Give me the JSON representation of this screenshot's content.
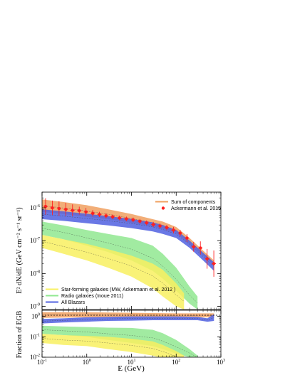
{
  "chart_data": {
    "type": "area",
    "xlabel": "E (GeV)",
    "xscale": "log",
    "xlim": [
      0.1,
      1000
    ],
    "x_ticks": [
      "10^-1",
      "10^0",
      "10^1",
      "10^2",
      "10^3"
    ],
    "panels": [
      {
        "ylabel": "E² dN/dE (GeV cm⁻² s⁻¹ sr⁻¹)",
        "yscale": "log",
        "ylim": [
          8e-10,
          3e-06
        ],
        "y_ticks": [
          "10^-6",
          "10^-7",
          "10^-8",
          "10^-9"
        ],
        "series": [
          {
            "name": "Sum of components",
            "kind": "band",
            "color": "#f0a060",
            "x": [
              0.1,
              0.3,
              1,
              3,
              10,
              30,
              50,
              100,
              200,
              400,
              700
            ],
            "lo": [
              7.5e-07,
              6.5e-07,
              5.3e-07,
              4.5e-07,
              3.5e-07,
              2.7e-07,
              2.3e-07,
              1.7e-07,
              8e-08,
              3.5e-08,
              1.8e-08
            ],
            "hi": [
              1.8e-06,
              1.5e-06,
              1.2e-06,
              9e-07,
              6.5e-07,
              4.5e-07,
              3.8e-07,
              2.6e-07,
              1.2e-07,
              5e-08,
              2.5e-08
            ]
          },
          {
            "name": "All Blazars",
            "kind": "band",
            "color": "#5060e0",
            "x": [
              0.1,
              0.3,
              1,
              3,
              10,
              30,
              50,
              100,
              200,
              400,
              700
            ],
            "lo": [
              4.5e-07,
              4e-07,
              3.4e-07,
              2.9e-07,
              2.4e-07,
              1.9e-07,
              1.6e-07,
              1.2e-07,
              6e-08,
              2.5e-08,
              1.2e-08
            ],
            "hi": [
              9e-07,
              7.8e-07,
              6.6e-07,
              5.6e-07,
              4.6e-07,
              3.6e-07,
              3e-07,
              2.1e-07,
              1e-07,
              4.3e-08,
              2.2e-08
            ]
          },
          {
            "name": "Radio galaxies (Inoue 2011)",
            "kind": "band",
            "color": "#90e890",
            "x": [
              0.1,
              0.3,
              1,
              3,
              10,
              30,
              50,
              100,
              200,
              300
            ],
            "lo": [
              1.5e-07,
              1.1e-07,
              7e-08,
              4.5e-08,
              2.5e-08,
              1.2e-08,
              7e-09,
              3e-09,
              1.2e-09,
              8e-10
            ],
            "hi": [
              3.8e-07,
              2.9e-07,
              2.1e-07,
              1.6e-07,
              1.2e-07,
              7e-08,
              4e-08,
              1.5e-08,
              4e-09,
              2e-09
            ]
          },
          {
            "name": "Star-forming galaxies (MW, Ackermann et al. 2012 )",
            "kind": "band",
            "color": "#f8f060",
            "x": [
              0.1,
              0.3,
              1,
              3,
              10,
              30,
              50,
              100,
              150
            ],
            "lo": [
              6e-08,
              4e-08,
              2.5e-08,
              1.5e-08,
              8e-09,
              3.5e-09,
              2e-09,
              1e-09,
              8e-10
            ],
            "hi": [
              1.5e-07,
              1.1e-07,
              8e-08,
              5.5e-08,
              3.5e-08,
              2e-08,
              1.3e-08,
              5e-09,
              2.5e-09
            ]
          },
          {
            "name": "Ackermann et al. 2015",
            "kind": "points",
            "color": "#ff2020",
            "x": [
              0.12,
              0.17,
              0.24,
              0.34,
              0.48,
              0.68,
              0.96,
              1.36,
              1.92,
              2.7,
              3.8,
              5.4,
              7.7,
              10.9,
              15.4,
              21.8,
              30.8,
              43.5,
              61.5,
              87,
              123,
              174,
              246,
              348,
              492,
              695
            ],
            "y": [
              1.1e-06,
              1e-06,
              9.5e-07,
              9e-07,
              8.4e-07,
              8.2e-07,
              7.5e-07,
              6.8e-07,
              6.3e-07,
              5.7e-07,
              5.3e-07,
              4.9e-07,
              4.6e-07,
              4.3e-07,
              3.9e-07,
              3.5e-07,
              3.1e-07,
              2.8e-07,
              2.5e-07,
              2.1e-07,
              1.7e-07,
              1.2e-07,
              6.5e-08,
              6e-08,
              2.8e-08,
              2e-08
            ],
            "err": [
              0.25,
              0.22,
              0.22,
              0.2,
              0.18,
              0.12,
              0.12,
              0.1,
              0.08,
              0.08,
              0.07,
              0.07,
              0.07,
              0.07,
              0.07,
              0.07,
              0.08,
              0.08,
              0.08,
              0.1,
              0.1,
              0.12,
              0.15,
              0.2,
              0.3,
              0.4
            ]
          }
        ],
        "legend_top": [
          "Sum of components",
          "Ackermann et al. 2015"
        ],
        "legend_bottom": [
          "Star-forming galaxies (MW, Ackermann et al. 2012 )",
          "Radio galaxies (Inoue 2011)",
          "All Blazars"
        ]
      },
      {
        "ylabel": "Fraction of EGB",
        "yscale": "log",
        "ylim": [
          0.01,
          2
        ],
        "y_ticks": [
          "10^0",
          "10^-1",
          "10^-2"
        ],
        "reference_line": 1,
        "series": [
          {
            "name": "Sum of components",
            "kind": "band",
            "color": "#f0a060",
            "x": [
              0.1,
              1,
              10,
              100,
              700
            ],
            "lo": [
              0.85,
              0.9,
              0.9,
              0.9,
              0.9
            ],
            "hi": [
              1.6,
              1.6,
              1.5,
              1.4,
              1.4
            ]
          },
          {
            "name": "All Blazars",
            "kind": "band",
            "color": "#5060e0",
            "x": [
              0.1,
              0.3,
              1,
              3,
              10,
              30,
              100,
              300,
              500,
              700
            ],
            "lo": [
              0.45,
              0.5,
              0.55,
              0.6,
              0.62,
              0.65,
              0.65,
              0.65,
              0.55,
              0.6
            ],
            "hi": [
              0.75,
              0.8,
              0.9,
              0.95,
              1.0,
              1.0,
              1.0,
              0.95,
              0.8,
              1.3
            ]
          },
          {
            "name": "Radio galaxies (Inoue 2011)",
            "kind": "band",
            "color": "#90e890",
            "x": [
              0.1,
              0.3,
              1,
              3,
              10,
              30,
              50,
              100,
              200,
              300
            ],
            "lo": [
              0.14,
              0.12,
              0.1,
              0.07,
              0.05,
              0.035,
              0.025,
              0.015,
              0.01,
              0.008
            ],
            "hi": [
              0.35,
              0.32,
              0.3,
              0.28,
              0.27,
              0.22,
              0.15,
              0.07,
              0.025,
              0.012
            ]
          },
          {
            "name": "Star-forming galaxies (MW, Ackermann et al. 2012 )",
            "kind": "band",
            "color": "#f8f060",
            "x": [
              0.1,
              0.3,
              1,
              3,
              10,
              30,
              50,
              100,
              150
            ],
            "lo": [
              0.05,
              0.04,
              0.035,
              0.025,
              0.018,
              0.012,
              0.009,
              0.006,
              0.005
            ],
            "hi": [
              0.14,
              0.12,
              0.11,
              0.1,
              0.08,
              0.06,
              0.04,
              0.02,
              0.012
            ]
          }
        ]
      }
    ]
  }
}
